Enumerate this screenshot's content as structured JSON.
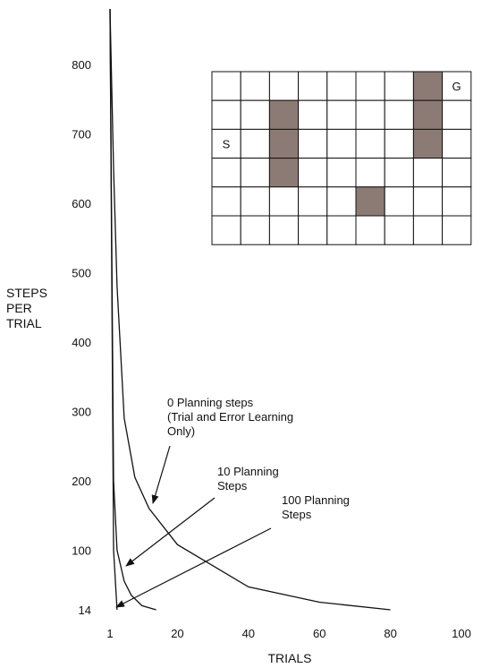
{
  "chart_data": {
    "type": "line",
    "xlabel": "TRIALS",
    "ylabel": [
      "STEPS",
      "PER",
      "TRIAL"
    ],
    "xlim": [
      1,
      100
    ],
    "ylim": [
      14,
      880
    ],
    "xticks": [
      1,
      20,
      40,
      60,
      80,
      100
    ],
    "yticks": [
      14,
      100,
      200,
      300,
      400,
      500,
      600,
      700,
      800
    ],
    "series": [
      {
        "name": "0 Planning steps",
        "annotation": [
          "0 Planning steps",
          "(Trial and Error Learning",
          "Only)"
        ],
        "x": [
          1,
          2,
          3,
          5,
          8,
          12,
          20,
          40,
          60,
          80
        ],
        "y": [
          880,
          650,
          480,
          290,
          205,
          160,
          108,
          47,
          25,
          14
        ]
      },
      {
        "name": "10 Planning Steps",
        "annotation": [
          "10 Planning",
          "Steps"
        ],
        "x": [
          1,
          2,
          3,
          5,
          7,
          10,
          14
        ],
        "y": [
          880,
          200,
          100,
          55,
          35,
          20,
          14
        ]
      },
      {
        "name": "100 Planning Steps",
        "annotation": [
          "100 Planning",
          "Steps"
        ],
        "x": [
          1,
          2,
          3
        ],
        "y": [
          880,
          100,
          14
        ]
      }
    ],
    "gridworld": {
      "cols": 9,
      "rows": 6,
      "start_label": "S",
      "goal_label": "G",
      "start": [
        0,
        2
      ],
      "goal": [
        8,
        0
      ],
      "obstacles": [
        [
          2,
          1
        ],
        [
          2,
          2
        ],
        [
          2,
          3
        ],
        [
          7,
          0
        ],
        [
          7,
          1
        ],
        [
          7,
          2
        ],
        [
          5,
          4
        ]
      ],
      "obstacle_color": "#8c7b74"
    },
    "grid": false,
    "legend": "none"
  }
}
